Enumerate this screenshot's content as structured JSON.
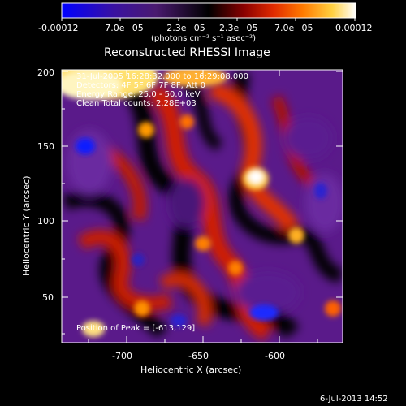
{
  "colorbar": {
    "tick_labels": [
      "-0.00012",
      "−7.0e−05",
      "−2.3e−05",
      "2.3e−05",
      "7.0e−05",
      "0.00012"
    ],
    "unit_label": "(photons cm⁻² s⁻¹ asec⁻²)",
    "stops": [
      "#0000ff",
      "#2a0a8a",
      "#4b1a6e",
      "#000000",
      "#6a0000",
      "#c01a00",
      "#ff5a00",
      "#ff9a00",
      "#ffd84a",
      "#ffffff"
    ]
  },
  "plot": {
    "title": "Reconstructed RHESSI Image",
    "xlabel": "Heliocentric X (arcsec)",
    "ylabel": "Heliocentric Y (arcsec)",
    "x_ticks": [
      "-700",
      "-650",
      "-600"
    ],
    "y_ticks": [
      "50",
      "100",
      "150",
      "200"
    ],
    "annotations": [
      "31-Jul-2005 16:28:32.000 to 16:29:08.000",
      "Detectors: 4F 5F 6F 7F 8F, Att 0",
      "Energy Range: 25.0 - 50.0 keV",
      "Clean     Total counts: 2.28E+03"
    ],
    "peak_label": "Position of Peak = [-613,129]"
  },
  "footer": {
    "timestamp": "6-Jul-2013 14:52"
  },
  "image_blobs": [
    {
      "name": "blob-bright-center",
      "color": "#ffffff",
      "size": "small"
    },
    {
      "name": "blob-bright-topleft",
      "color": "#ffe9a0",
      "size": "large"
    }
  ]
}
